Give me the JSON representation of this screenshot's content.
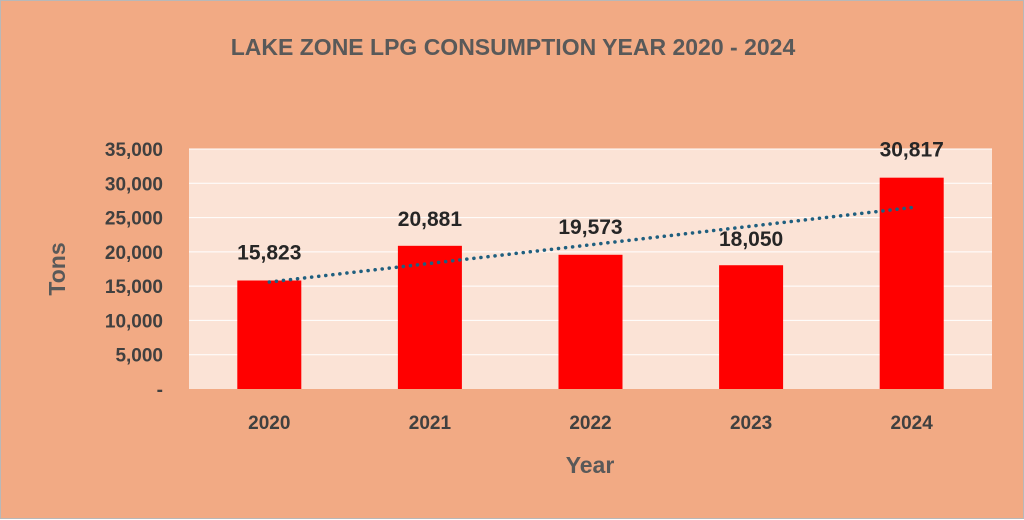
{
  "chart_data": {
    "type": "bar",
    "title": "LAKE ZONE LPG CONSUMPTION YEAR 2020 - 2024",
    "xlabel": "Year",
    "ylabel": "Tons",
    "categories": [
      "2020",
      "2021",
      "2022",
      "2023",
      "2024"
    ],
    "values": [
      15823,
      20881,
      19573,
      18050,
      30817
    ],
    "data_labels": [
      "15,823",
      "20,881",
      "19,573",
      "18,050",
      "30,817"
    ],
    "ylim": [
      0,
      35000
    ],
    "y_ticks": [
      0,
      5000,
      10000,
      15000,
      20000,
      25000,
      30000,
      35000
    ],
    "y_tick_labels": [
      "-",
      "5,000",
      "10,000",
      "15,000",
      "20,000",
      "25,000",
      "30,000",
      "35,000"
    ],
    "trendline": "linear",
    "grid": true,
    "legend": "none",
    "colors": {
      "background": "#f2aa84",
      "plot_area": "#fbe3d6",
      "bar": "#ff0000",
      "trendline": "#1f5f7f",
      "gridline": "#ffffff"
    }
  }
}
